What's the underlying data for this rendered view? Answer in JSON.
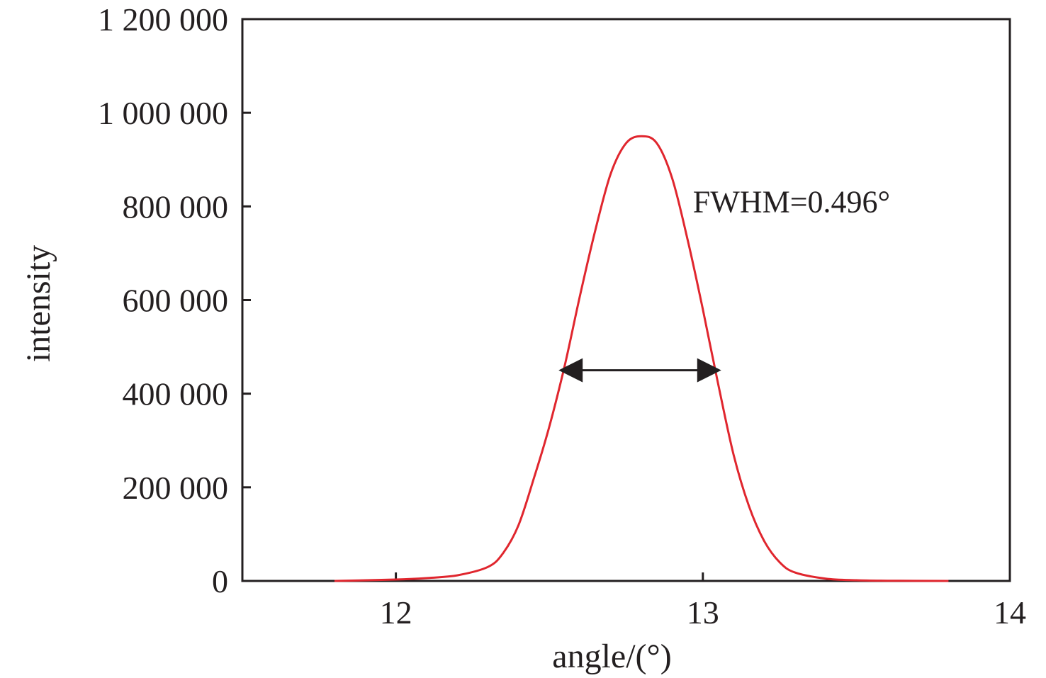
{
  "chart_data": {
    "type": "line",
    "title": "",
    "xlabel": "angle/(°)",
    "ylabel": "intensity",
    "xlim": [
      11.5,
      14
    ],
    "ylim": [
      0,
      1200000
    ],
    "xticks": [
      12,
      13,
      14
    ],
    "xtick_labels": [
      "12",
      "13",
      "14"
    ],
    "yticks": [
      0,
      200000,
      400000,
      600000,
      800000,
      1000000,
      1200000
    ],
    "ytick_labels": [
      "0",
      "200 000",
      "400 000",
      "600 000",
      "800 000",
      "1 000 000",
      "1 200 000"
    ],
    "grid": false,
    "legend": "none",
    "series": [
      {
        "color": "#e0262e",
        "x": [
          11.8,
          12.0,
          12.1,
          12.2,
          12.3,
          12.35,
          12.4,
          12.45,
          12.5,
          12.55,
          12.6,
          12.65,
          12.7,
          12.75,
          12.8,
          12.85,
          12.9,
          12.95,
          13.0,
          13.05,
          13.1,
          13.15,
          13.2,
          13.25,
          13.3,
          13.4,
          13.5,
          13.6,
          13.8
        ],
        "y": [
          0,
          3000,
          6000,
          12000,
          30000,
          60000,
          120000,
          220000,
          330000,
          460000,
          610000,
          750000,
          870000,
          935000,
          950000,
          935000,
          860000,
          730000,
          580000,
          420000,
          270000,
          160000,
          85000,
          40000,
          18000,
          5000,
          1500,
          500,
          0
        ]
      }
    ],
    "annotations": [
      {
        "text": "FWHM=0.496°",
        "x": 13.0,
        "y": 810000
      }
    ],
    "fwhm_arrow": {
      "x_start": 12.53,
      "x_end": 13.06,
      "y": 450000,
      "color": "#231f20"
    }
  }
}
